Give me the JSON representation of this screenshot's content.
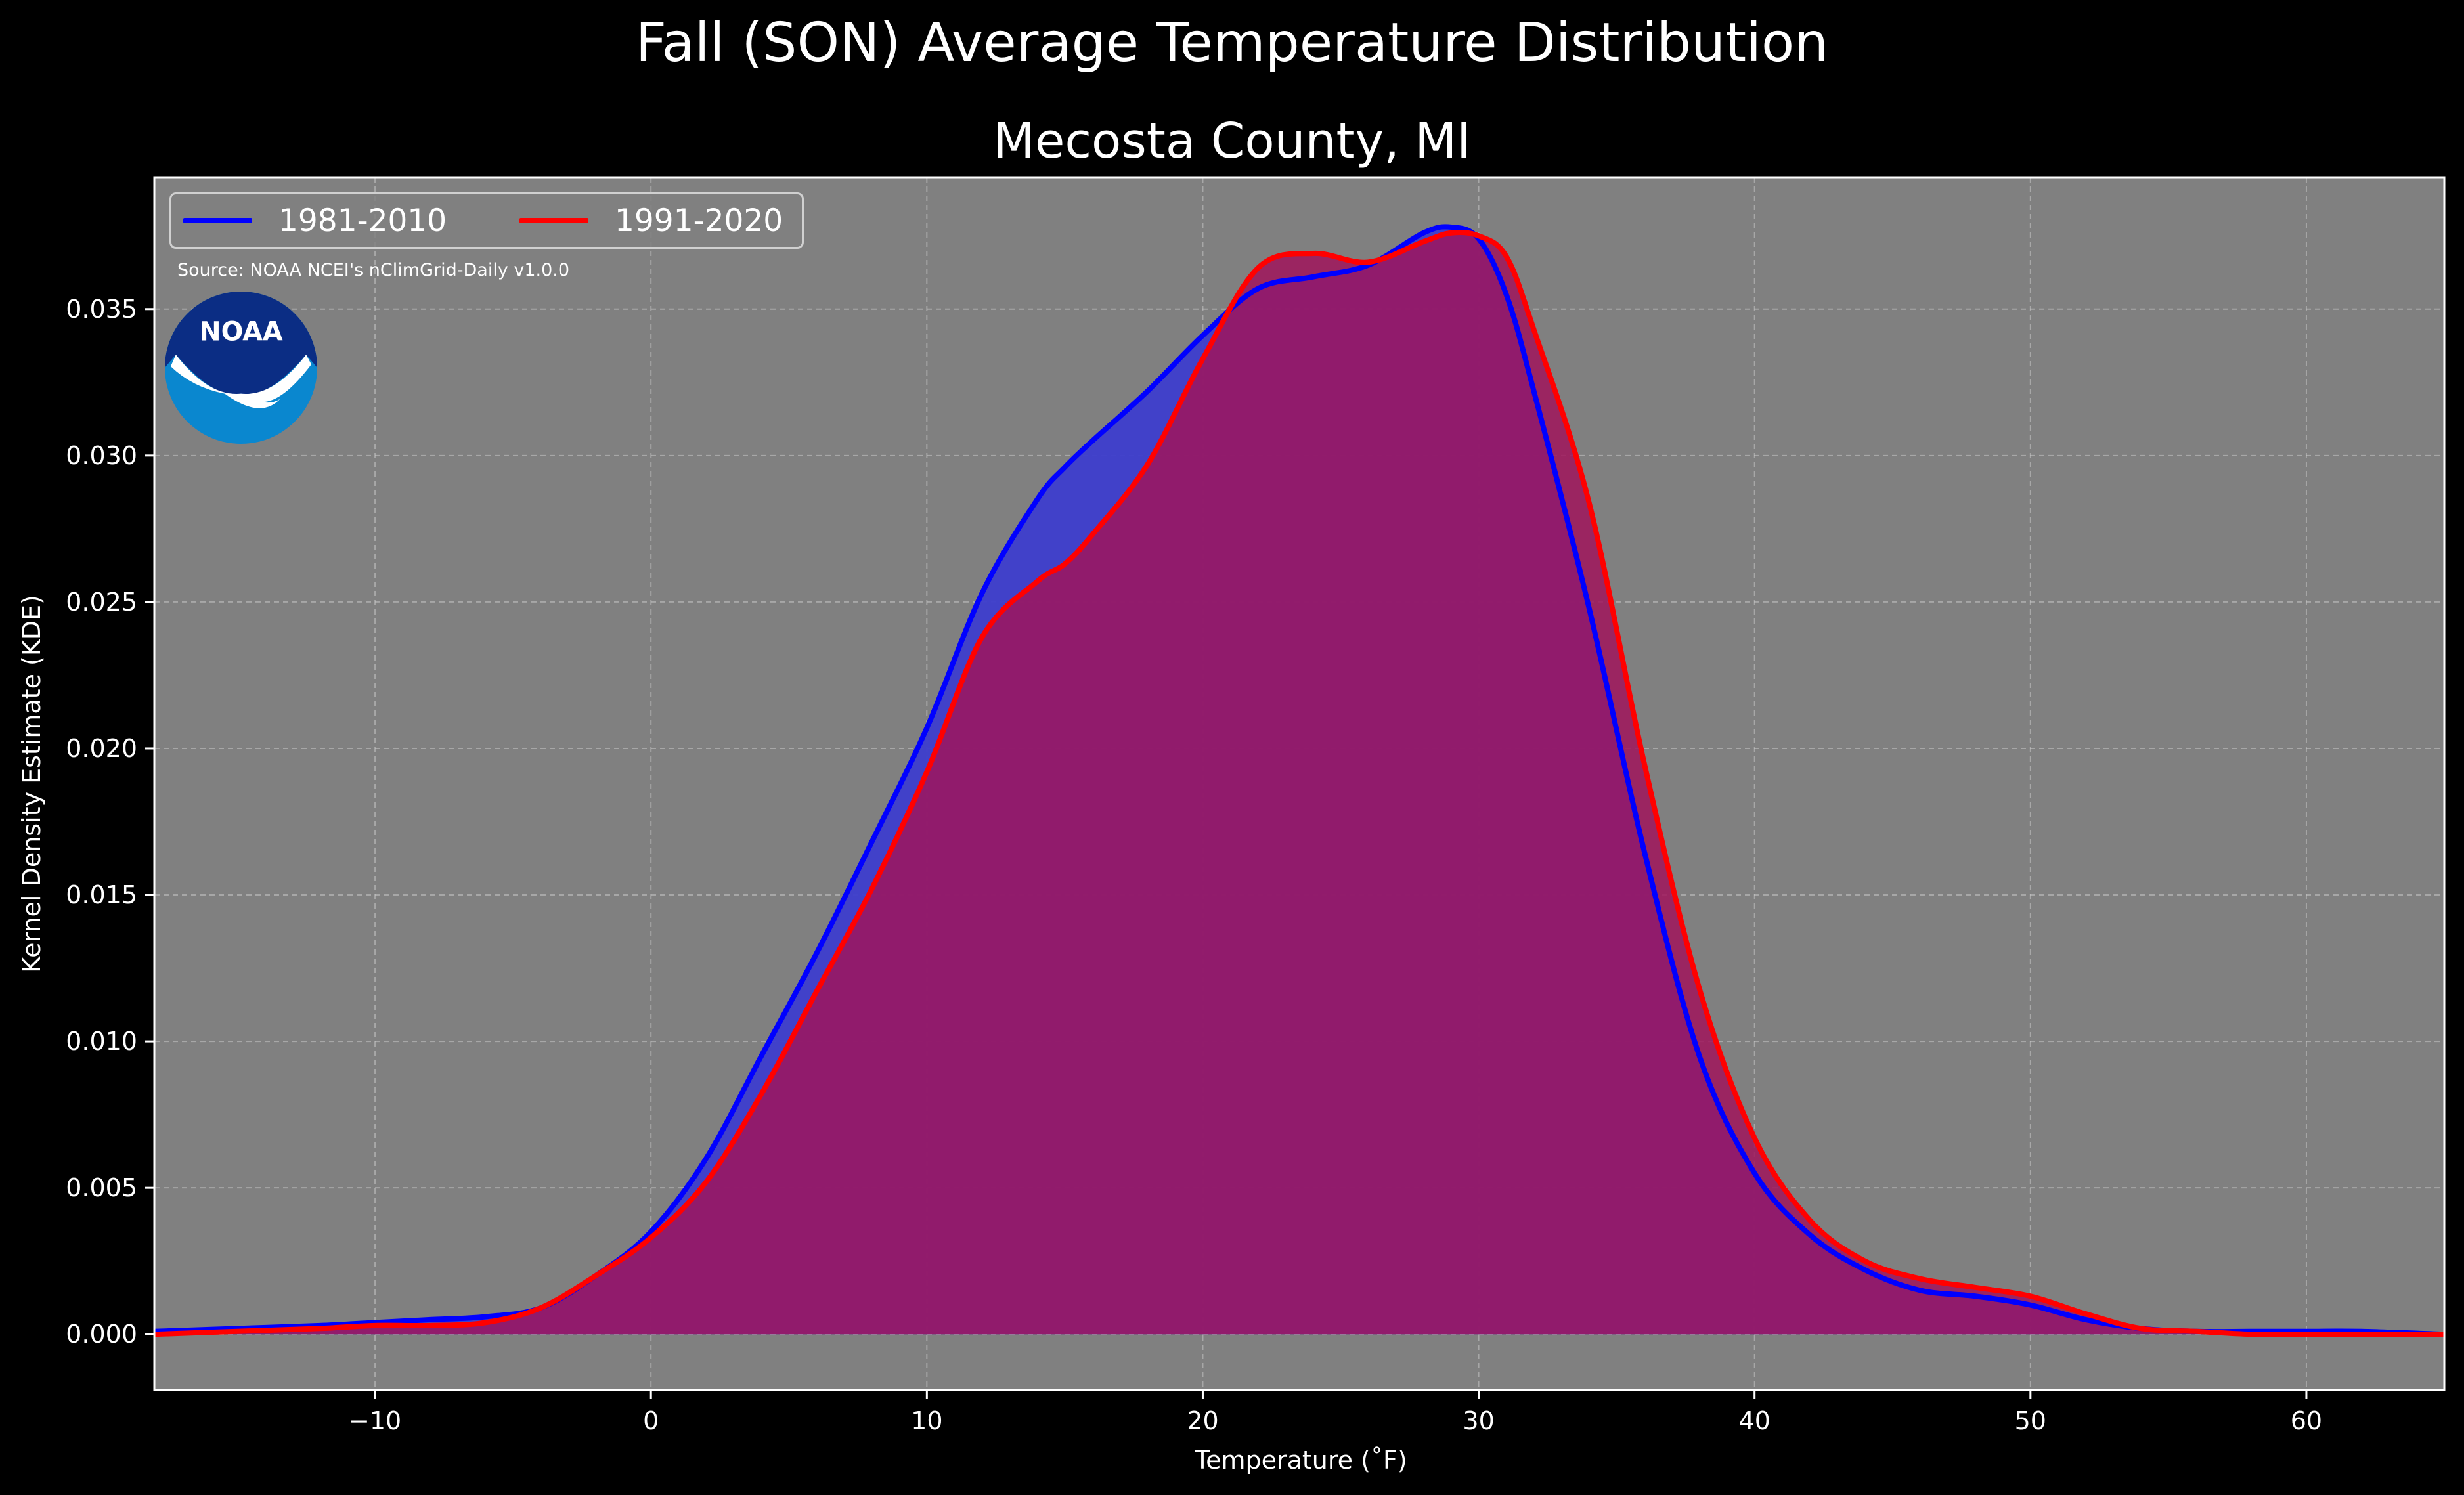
{
  "figure": {
    "suptitle": "Fall (SON) Average Temperature Distribution",
    "title": "Mecosta County, MI",
    "source_note": "Source: NOAA NCEI's nClimGrid-Daily v1.0.0",
    "logo_text": "NOAA",
    "background": "#000000",
    "axes_background": "#808080"
  },
  "chart_data": {
    "type": "area",
    "xlabel": "Temperature ($^\\circ$F)",
    "xlabel_display": "Temperature (˚F)",
    "ylabel": "Kernel Density Estimate (KDE)",
    "xlim": [
      -18,
      65
    ],
    "ylim": [
      -0.0019,
      0.0395
    ],
    "xticks": [
      -10,
      0,
      10,
      20,
      30,
      40,
      50,
      60
    ],
    "xtick_labels": [
      "−10",
      "0",
      "10",
      "20",
      "30",
      "40",
      "50",
      "60"
    ],
    "yticks": [
      0.0,
      0.005,
      0.01,
      0.015,
      0.02,
      0.025,
      0.03,
      0.035
    ],
    "ytick_labels": [
      "0.000",
      "0.005",
      "0.010",
      "0.015",
      "0.020",
      "0.025",
      "0.030",
      "0.035"
    ],
    "grid": true,
    "legend_position": "top-left",
    "series": [
      {
        "name": "1981-2010",
        "color": "#0000ff",
        "x": [
          -18,
          -15,
          -12,
          -10,
          -8,
          -6,
          -4,
          -2,
          0,
          2,
          4,
          6,
          8,
          10,
          12,
          14,
          15,
          16,
          18,
          20,
          22,
          24,
          26,
          28,
          29,
          30,
          31,
          32,
          34,
          36,
          38,
          40,
          42,
          44,
          46,
          48,
          50,
          52,
          54,
          56,
          58,
          60,
          62,
          65
        ],
        "y": [
          0.0001,
          0.0002,
          0.0003,
          0.0004,
          0.0005,
          0.0006,
          0.0009,
          0.002,
          0.0035,
          0.006,
          0.0095,
          0.013,
          0.0168,
          0.0207,
          0.0253,
          0.0285,
          0.0296,
          0.0305,
          0.0322,
          0.0341,
          0.0357,
          0.0361,
          0.0365,
          0.0376,
          0.0378,
          0.0374,
          0.0355,
          0.0322,
          0.0248,
          0.0165,
          0.0095,
          0.0055,
          0.0034,
          0.0022,
          0.0015,
          0.0013,
          0.001,
          0.0005,
          0.0002,
          0.0001,
          0.0001,
          0.0001,
          0.0001,
          0.0
        ]
      },
      {
        "name": "1991-2020",
        "color": "#ff0000",
        "x": [
          -18,
          -15,
          -12,
          -10,
          -8,
          -6,
          -4,
          -2,
          0,
          2,
          4,
          6,
          8,
          10,
          12,
          14,
          15,
          16,
          18,
          20,
          22,
          24,
          26,
          28,
          29,
          30,
          31,
          32,
          34,
          36,
          38,
          40,
          42,
          44,
          46,
          48,
          50,
          52,
          54,
          56,
          58,
          60,
          62,
          65
        ],
        "y": [
          0.0,
          0.0001,
          0.0002,
          0.0003,
          0.0003,
          0.0004,
          0.0009,
          0.002,
          0.0033,
          0.0052,
          0.0082,
          0.0117,
          0.0152,
          0.0192,
          0.0238,
          0.0257,
          0.0263,
          0.0273,
          0.0297,
          0.0333,
          0.0364,
          0.0369,
          0.0366,
          0.0373,
          0.0376,
          0.0375,
          0.0368,
          0.0343,
          0.0284,
          0.0195,
          0.0118,
          0.0067,
          0.0039,
          0.0025,
          0.0019,
          0.0016,
          0.0013,
          0.0007,
          0.0002,
          0.0001,
          0.0,
          0.0,
          0.0,
          0.0
        ]
      }
    ]
  }
}
